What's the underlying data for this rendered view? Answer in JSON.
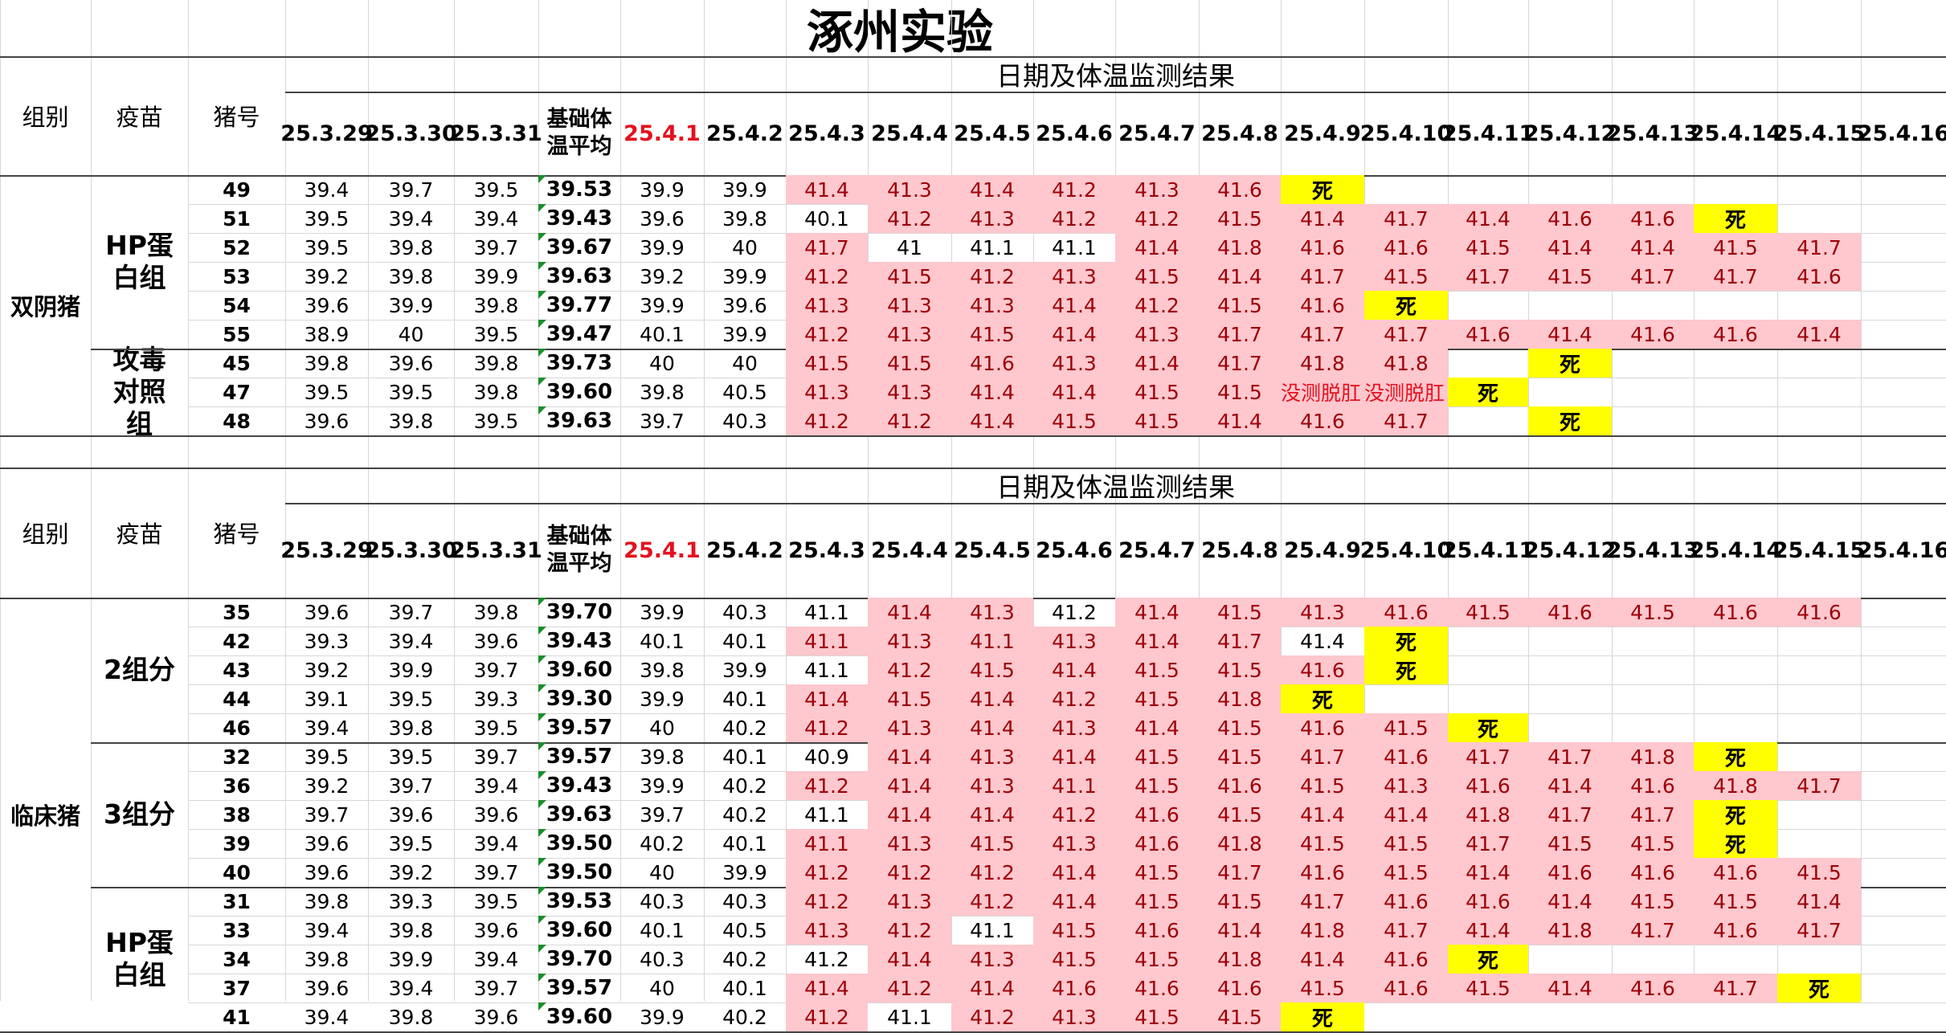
{
  "title": "涿州实验",
  "sections": [
    {
      "header": "日期及体温监测结果",
      "col_labels": {
        "group": "组别",
        "vaccine": "疫苗",
        "pig": "猪号",
        "avg_line1": "基础体",
        "avg_line2": "温平均"
      },
      "dates": [
        "25.3.29",
        "25.3.30",
        "25.3.31",
        "25.4.1",
        "25.4.2",
        "25.4.3",
        "25.4.4",
        "25.4.5",
        "25.4.6",
        "25.4.7",
        "25.4.8",
        "25.4.9",
        "25.4.10",
        "25.4.11",
        "25.4.12",
        "25.4.13",
        "25.4.14",
        "25.4.15",
        "25.4.16"
      ],
      "group_names": [
        "双阴猪"
      ],
      "vaccine_names": [
        "HP蛋白组",
        "攻毒对照组"
      ],
      "rows": [
        {
          "pig": "49",
          "pre": [
            "39.4",
            "39.7",
            "39.5"
          ],
          "avg": "39.53",
          "d": [
            "39.9",
            "39.9",
            "41.4",
            "41.3",
            "41.4",
            "41.2",
            "41.3",
            "41.6",
            "死",
            "",
            "",
            "",
            "",
            "",
            ""
          ]
        },
        {
          "pig": "51",
          "pre": [
            "39.5",
            "39.4",
            "39.4"
          ],
          "avg": "39.43",
          "d": [
            "39.6",
            "39.8",
            "40.1",
            "41.2",
            "41.3",
            "41.2",
            "41.2",
            "41.5",
            "41.4",
            "41.7",
            "41.4",
            "41.6",
            "41.6",
            "死",
            ""
          ]
        },
        {
          "pig": "52",
          "pre": [
            "39.5",
            "39.8",
            "39.7"
          ],
          "avg": "39.67",
          "d": [
            "39.9",
            "40",
            "41.7",
            "41",
            "41.1",
            "41.1",
            "41.4",
            "41.8",
            "41.6",
            "41.6",
            "41.5",
            "41.4",
            "41.4",
            "41.5",
            "41.7"
          ]
        },
        {
          "pig": "53",
          "pre": [
            "39.2",
            "39.8",
            "39.9"
          ],
          "avg": "39.63",
          "d": [
            "39.2",
            "39.9",
            "41.2",
            "41.5",
            "41.2",
            "41.3",
            "41.5",
            "41.4",
            "41.7",
            "41.5",
            "41.7",
            "41.5",
            "41.7",
            "41.7",
            "41.6"
          ]
        },
        {
          "pig": "54",
          "pre": [
            "39.6",
            "39.9",
            "39.8"
          ],
          "avg": "39.77",
          "d": [
            "39.9",
            "39.6",
            "41.3",
            "41.3",
            "41.3",
            "41.4",
            "41.2",
            "41.5",
            "41.6",
            "死",
            "",
            "",
            "",
            "",
            ""
          ]
        },
        {
          "pig": "55",
          "pre": [
            "38.9",
            "40",
            "39.5"
          ],
          "avg": "39.47",
          "d": [
            "40.1",
            "39.9",
            "41.2",
            "41.3",
            "41.5",
            "41.4",
            "41.3",
            "41.7",
            "41.7",
            "41.7",
            "41.6",
            "41.4",
            "41.6",
            "41.6",
            "41.4"
          ]
        },
        {
          "pig": "45",
          "pre": [
            "39.8",
            "39.6",
            "39.8"
          ],
          "avg": "39.73",
          "d": [
            "40",
            "40",
            "41.5",
            "41.5",
            "41.6",
            "41.3",
            "41.4",
            "41.7",
            "41.8",
            "41.8",
            "",
            "死",
            "",
            "",
            ""
          ]
        },
        {
          "pig": "47",
          "pre": [
            "39.5",
            "39.5",
            "39.8"
          ],
          "avg": "39.60",
          "d": [
            "39.8",
            "40.5",
            "41.3",
            "41.3",
            "41.4",
            "41.4",
            "41.5",
            "41.5",
            "没测脱肛",
            "没测脱肛",
            "死",
            "",
            "",
            "",
            ""
          ]
        },
        {
          "pig": "48",
          "pre": [
            "39.6",
            "39.8",
            "39.5"
          ],
          "avg": "39.63",
          "d": [
            "39.7",
            "40.3",
            "41.2",
            "41.2",
            "41.4",
            "41.5",
            "41.5",
            "41.4",
            "41.6",
            "41.7",
            "",
            "死",
            "",
            "",
            ""
          ]
        }
      ]
    },
    {
      "header": "日期及体温监测结果",
      "col_labels": {
        "group": "组别",
        "vaccine": "疫苗",
        "pig": "猪号",
        "avg_line1": "基础体",
        "avg_line2": "温平均"
      },
      "dates": [
        "25.3.29",
        "25.3.30",
        "25.3.31",
        "25.4.1",
        "25.4.2",
        "25.4.3",
        "25.4.4",
        "25.4.5",
        "25.4.6",
        "25.4.7",
        "25.4.8",
        "25.4.9",
        "25.4.10",
        "25.4.11",
        "25.4.12",
        "25.4.13",
        "25.4.14",
        "25.4.15",
        "25.4.16"
      ],
      "group_names": [
        "临床猪"
      ],
      "vaccine_names": [
        "2组分",
        "3组分",
        "HP蛋白组"
      ],
      "rows": [
        {
          "pig": "35",
          "pre": [
            "39.6",
            "39.7",
            "39.8"
          ],
          "avg": "39.70",
          "d": [
            "39.9",
            "40.3",
            "41.1",
            "41.4",
            "41.3",
            "41.2",
            "41.4",
            "41.5",
            "41.3",
            "41.6",
            "41.5",
            "41.6",
            "41.5",
            "41.6",
            "41.6"
          ]
        },
        {
          "pig": "42",
          "pre": [
            "39.3",
            "39.4",
            "39.6"
          ],
          "avg": "39.43",
          "d": [
            "40.1",
            "40.1",
            "41.1",
            "41.3",
            "41.1",
            "41.3",
            "41.4",
            "41.7",
            "41.4",
            "死",
            "",
            "",
            "",
            "",
            ""
          ]
        },
        {
          "pig": "43",
          "pre": [
            "39.2",
            "39.9",
            "39.7"
          ],
          "avg": "39.60",
          "d": [
            "39.8",
            "39.9",
            "41.1",
            "41.2",
            "41.5",
            "41.4",
            "41.5",
            "41.5",
            "41.6",
            "死",
            "",
            "",
            "",
            "",
            ""
          ]
        },
        {
          "pig": "44",
          "pre": [
            "39.1",
            "39.5",
            "39.3"
          ],
          "avg": "39.30",
          "d": [
            "39.9",
            "40.1",
            "41.4",
            "41.5",
            "41.4",
            "41.2",
            "41.5",
            "41.8",
            "死",
            "",
            "",
            "",
            "",
            "",
            ""
          ]
        },
        {
          "pig": "46",
          "pre": [
            "39.4",
            "39.8",
            "39.5"
          ],
          "avg": "39.57",
          "d": [
            "40",
            "40.2",
            "41.2",
            "41.3",
            "41.4",
            "41.3",
            "41.4",
            "41.5",
            "41.6",
            "41.5",
            "死",
            "",
            "",
            "",
            ""
          ]
        },
        {
          "pig": "32",
          "pre": [
            "39.5",
            "39.5",
            "39.7"
          ],
          "avg": "39.57",
          "d": [
            "39.8",
            "40.1",
            "40.9",
            "41.4",
            "41.3",
            "41.4",
            "41.5",
            "41.5",
            "41.7",
            "41.6",
            "41.7",
            "41.7",
            "41.8",
            "死",
            ""
          ]
        },
        {
          "pig": "36",
          "pre": [
            "39.2",
            "39.7",
            "39.4"
          ],
          "avg": "39.43",
          "d": [
            "39.9",
            "40.2",
            "41.2",
            "41.4",
            "41.3",
            "41.1",
            "41.5",
            "41.6",
            "41.5",
            "41.3",
            "41.6",
            "41.4",
            "41.6",
            "41.8",
            "41.7"
          ]
        },
        {
          "pig": "38",
          "pre": [
            "39.7",
            "39.6",
            "39.6"
          ],
          "avg": "39.63",
          "d": [
            "39.7",
            "40.2",
            "41.1",
            "41.4",
            "41.4",
            "41.2",
            "41.6",
            "41.5",
            "41.4",
            "41.4",
            "41.8",
            "41.7",
            "41.7",
            "死",
            ""
          ]
        },
        {
          "pig": "39",
          "pre": [
            "39.6",
            "39.5",
            "39.4"
          ],
          "avg": "39.50",
          "d": [
            "40.2",
            "40.1",
            "41.1",
            "41.3",
            "41.5",
            "41.3",
            "41.6",
            "41.8",
            "41.5",
            "41.5",
            "41.7",
            "41.5",
            "41.5",
            "死",
            ""
          ]
        },
        {
          "pig": "40",
          "pre": [
            "39.6",
            "39.2",
            "39.7"
          ],
          "avg": "39.50",
          "d": [
            "40",
            "39.9",
            "41.2",
            "41.2",
            "41.2",
            "41.4",
            "41.5",
            "41.7",
            "41.6",
            "41.5",
            "41.4",
            "41.6",
            "41.6",
            "41.6",
            "41.5"
          ]
        },
        {
          "pig": "31",
          "pre": [
            "39.8",
            "39.3",
            "39.5"
          ],
          "avg": "39.53",
          "d": [
            "40.3",
            "40.3",
            "41.2",
            "41.3",
            "41.2",
            "41.4",
            "41.5",
            "41.5",
            "41.7",
            "41.6",
            "41.6",
            "41.4",
            "41.5",
            "41.5",
            "41.4"
          ]
        },
        {
          "pig": "33",
          "pre": [
            "39.4",
            "39.8",
            "39.6"
          ],
          "avg": "39.60",
          "d": [
            "40.1",
            "40.5",
            "41.3",
            "41.2",
            "41.1",
            "41.5",
            "41.6",
            "41.4",
            "41.8",
            "41.7",
            "41.4",
            "41.8",
            "41.7",
            "41.6",
            "41.7"
          ]
        },
        {
          "pig": "34",
          "pre": [
            "39.8",
            "39.9",
            "39.4"
          ],
          "avg": "39.70",
          "d": [
            "40.3",
            "40.2",
            "41.2",
            "41.4",
            "41.3",
            "41.5",
            "41.5",
            "41.8",
            "41.4",
            "41.6",
            "死",
            "",
            "",
            "",
            ""
          ]
        },
        {
          "pig": "37",
          "pre": [
            "39.6",
            "39.4",
            "39.7"
          ],
          "avg": "39.57",
          "d": [
            "40",
            "40.1",
            "41.4",
            "41.2",
            "41.4",
            "41.6",
            "41.6",
            "41.6",
            "41.5",
            "41.6",
            "41.5",
            "41.4",
            "41.6",
            "41.7",
            "死"
          ]
        },
        {
          "pig": "41",
          "pre": [
            "39.4",
            "39.8",
            "39.6"
          ],
          "avg": "39.60",
          "d": [
            "39.9",
            "40.2",
            "41.2",
            "41.1",
            "41.2",
            "41.3",
            "41.5",
            "41.5",
            "死",
            "",
            "",
            "",
            "",
            "",
            ""
          ]
        }
      ]
    }
  ],
  "colors": {
    "pink_fill": "#ffc7ce",
    "pink_text": "#9c0006",
    "dead_fill": "#ffff00",
    "date_highlight": "#e5101e"
  },
  "highlight": {
    "s0_white": [
      [
        1,
        2
      ],
      [
        2,
        3
      ],
      [
        2,
        4
      ],
      [
        2,
        5
      ]
    ],
    "s1_white": [
      [
        0,
        2
      ],
      [
        0,
        5
      ],
      [
        1,
        8
      ],
      [
        2,
        2
      ],
      [
        5,
        2
      ],
      [
        7,
        2
      ],
      [
        11,
        4
      ],
      [
        12,
        2
      ],
      [
        14,
        3
      ]
    ]
  }
}
